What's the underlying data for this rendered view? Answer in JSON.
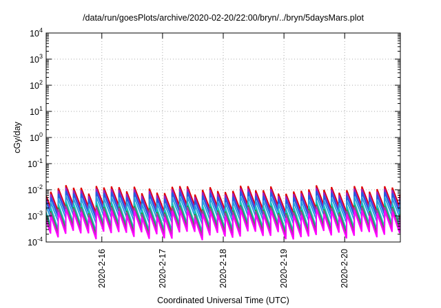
{
  "chart_data": {
    "type": "line",
    "title": "/data/run/goesPlots/archive/2020-02-20/22:00/bryn/../bryn/5daysMars.plot",
    "xlabel": "Coordinated Universal Time (UTC)",
    "ylabel": "cGy/day",
    "yscale": "log",
    "ylim": [
      0.0001,
      10000
    ],
    "xlim": [
      "2020-02-15 02:00",
      "2020-02-20 22:00"
    ],
    "grid": true,
    "legend": "none",
    "x_ticks": [
      "2020-2-16",
      "2020-2-17",
      "2020-2-18",
      "2020-2-19",
      "2020-2-20"
    ],
    "y_ticks": [
      {
        "base": "10",
        "exp": "-4"
      },
      {
        "base": "10",
        "exp": "-3"
      },
      {
        "base": "10",
        "exp": "-2"
      },
      {
        "base": "10",
        "exp": "-1"
      },
      {
        "base": "10",
        "exp": "0"
      },
      {
        "base": "10",
        "exp": "1"
      },
      {
        "base": "10",
        "exp": "2"
      },
      {
        "base": "10",
        "exp": "3"
      },
      {
        "base": "10",
        "exp": "4"
      }
    ],
    "sawtooth": {
      "period_hours": 3,
      "mean_peaks_cGy_per_day": [
        0.01,
        0.008,
        0.006,
        0.004,
        0.0025,
        0.0018,
        0.0016,
        0.0012
      ],
      "mean_troughs_cGy_per_day": [
        0.002,
        0.0015,
        0.0012,
        0.0008,
        0.0004,
        0.0003,
        0.00025,
        0.0002
      ]
    },
    "series": [
      {
        "color": "#e00000"
      },
      {
        "color": "#9a1fbf"
      },
      {
        "color": "#1f60e0"
      },
      {
        "color": "#2a9de0"
      },
      {
        "color": "#19c0c0"
      },
      {
        "color": "#2ca02c"
      },
      {
        "color": "#a040a0"
      },
      {
        "color": "#ff00ff"
      }
    ]
  }
}
